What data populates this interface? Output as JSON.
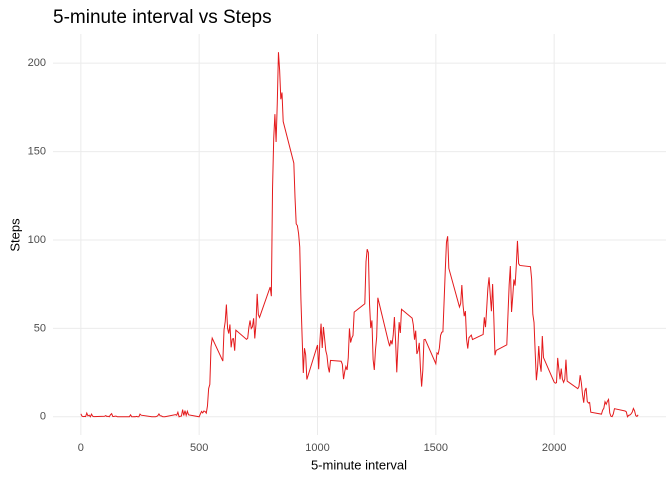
{
  "chart_data": {
    "type": "line",
    "title": "5-minute interval vs Steps",
    "xlabel": "5-minute interval",
    "ylabel": "Steps",
    "color": "#e41a1c",
    "grid": true,
    "xlim": [
      -117.75,
      2472.75
    ],
    "xticks": [
      0,
      500,
      1000,
      1500,
      2000
    ],
    "ylim": [
      -10.3,
      216.5
    ],
    "yticks": [
      0,
      50,
      100,
      150,
      200
    ],
    "x": [
      0,
      5,
      10,
      15,
      20,
      25,
      30,
      35,
      40,
      45,
      50,
      55,
      100,
      105,
      110,
      115,
      120,
      125,
      130,
      135,
      140,
      145,
      150,
      155,
      200,
      205,
      210,
      215,
      220,
      225,
      230,
      235,
      240,
      245,
      250,
      255,
      300,
      305,
      310,
      315,
      320,
      325,
      330,
      335,
      340,
      345,
      350,
      355,
      400,
      405,
      410,
      415,
      420,
      425,
      430,
      435,
      440,
      445,
      450,
      455,
      500,
      505,
      510,
      515,
      520,
      525,
      530,
      535,
      540,
      545,
      550,
      555,
      600,
      605,
      610,
      615,
      620,
      625,
      630,
      635,
      640,
      645,
      650,
      655,
      700,
      705,
      710,
      715,
      720,
      725,
      730,
      735,
      740,
      745,
      750,
      755,
      800,
      805,
      810,
      815,
      820,
      825,
      830,
      835,
      840,
      845,
      850,
      855,
      900,
      905,
      910,
      915,
      920,
      925,
      930,
      935,
      940,
      945,
      950,
      955,
      1000,
      1005,
      1010,
      1015,
      1020,
      1025,
      1030,
      1035,
      1040,
      1045,
      1050,
      1055,
      1100,
      1105,
      1110,
      1115,
      1120,
      1125,
      1130,
      1135,
      1140,
      1145,
      1150,
      1155,
      1200,
      1205,
      1210,
      1215,
      1220,
      1225,
      1230,
      1235,
      1240,
      1245,
      1250,
      1255,
      1300,
      1305,
      1310,
      1315,
      1320,
      1325,
      1330,
      1335,
      1340,
      1345,
      1350,
      1355,
      1400,
      1405,
      1410,
      1415,
      1420,
      1425,
      1430,
      1435,
      1440,
      1445,
      1450,
      1455,
      1500,
      1505,
      1510,
      1515,
      1520,
      1525,
      1530,
      1535,
      1540,
      1545,
      1550,
      1555,
      1600,
      1605,
      1610,
      1615,
      1620,
      1625,
      1630,
      1635,
      1640,
      1645,
      1650,
      1655,
      1700,
      1705,
      1710,
      1715,
      1720,
      1725,
      1730,
      1735,
      1740,
      1745,
      1750,
      1755,
      1800,
      1805,
      1810,
      1815,
      1820,
      1825,
      1830,
      1835,
      1840,
      1845,
      1850,
      1855,
      1900,
      1905,
      1910,
      1915,
      1920,
      1925,
      1930,
      1935,
      1940,
      1945,
      1950,
      1955,
      2000,
      2005,
      2010,
      2015,
      2020,
      2025,
      2030,
      2035,
      2040,
      2045,
      2050,
      2055,
      2100,
      2105,
      2110,
      2115,
      2120,
      2125,
      2130,
      2135,
      2140,
      2145,
      2150,
      2155,
      2200,
      2205,
      2210,
      2215,
      2220,
      2225,
      2230,
      2235,
      2240,
      2245,
      2250,
      2255,
      2300,
      2305,
      2310,
      2315,
      2320,
      2325,
      2330,
      2335,
      2340,
      2345,
      2350,
      2355
    ],
    "values": [
      1.7,
      0.3,
      0.1,
      0.2,
      0.1,
      2.1,
      0.5,
      0.9,
      0,
      1.5,
      0.3,
      0.1,
      0.3,
      0.7,
      0.2,
      0.3,
      0,
      1.1,
      1.8,
      0.2,
      0.2,
      0.4,
      0.3,
      0,
      0,
      0,
      1.1,
      0,
      0,
      0.1,
      0,
      0.2,
      0,
      0,
      1.5,
      0.9,
      0,
      0,
      0,
      0,
      0.2,
      0.6,
      1.6,
      0.6,
      0.5,
      0.1,
      0,
      0,
      1.2,
      0.9,
      2.6,
      0,
      0.3,
      0.4,
      4.1,
      0.7,
      3.5,
      0.8,
      3.1,
      1.1,
      0,
      1.6,
      3,
      2.2,
      3.3,
      3,
      2.1,
      6.1,
      16,
      18.3,
      39.5,
      44.5,
      31.5,
      49.3,
      53.8,
      63.5,
      50,
      47.1,
      52.2,
      39.3,
      44,
      44.2,
      37.4,
      49,
      43.8,
      44.4,
      50.5,
      54.5,
      49.9,
      50.9,
      55.7,
      44.3,
      52.3,
      69.5,
      57.8,
      56.2,
      73.4,
      68.2,
      129.4,
      157.5,
      171.2,
      155.4,
      177.3,
      206.2,
      195.9,
      179.6,
      183.4,
      167,
      143.5,
      124,
      109.1,
      108.1,
      103.7,
      96,
      66.2,
      45.2,
      24.8,
      38.8,
      35,
      21.1,
      40.6,
      26.9,
      42.4,
      52.7,
      38.9,
      50.8,
      44.3,
      37.4,
      34.7,
      28.3,
      25.1,
      31.9,
      31.4,
      29.7,
      21.3,
      25.5,
      28.4,
      26.5,
      33.4,
      49.98,
      42,
      44.6,
      46,
      59.2,
      63.9,
      87.7,
      94.8,
      92.8,
      63.4,
      50.2,
      54.5,
      32.4,
      26.5,
      37.7,
      45.1,
      67.3,
      42.3,
      39.9,
      43.3,
      40.98,
      46.2,
      56.4,
      42.8,
      25.1,
      40,
      53.5,
      47.4,
      60.8,
      55.8,
      51.96,
      43.6,
      48.7,
      35.5,
      37.5,
      41.8,
      27.5,
      17.1,
      26.1,
      43.6,
      43.8,
      30,
      36.1,
      35.5,
      38.8,
      45.96,
      47.8,
      48.1,
      65.3,
      82.9,
      98.7,
      102.1,
      83.96,
      62.1,
      64.1,
      74.5,
      63.2,
      56.9,
      59.8,
      43.9,
      38.6,
      44.7,
      45.5,
      46.2,
      43.7,
      46.6,
      56.3,
      50.7,
      61.2,
      72.7,
      78.9,
      68.9,
      59.7,
      75.1,
      56.5,
      34.8,
      37.5,
      40.7,
      58,
      74.7,
      85.3,
      59.3,
      67.8,
      77.7,
      74.2,
      85.3,
      99.5,
      86.6,
      85.6,
      84.9,
      77.8,
      58,
      53.4,
      36.3,
      20.7,
      27.4,
      40,
      30.2,
      25.5,
      45.7,
      33.5,
      19.6,
      19,
      19.3,
      33.3,
      26.8,
      21.2,
      27.3,
      21.3,
      19.5,
      21.3,
      32.3,
      20.2,
      15.9,
      17.2,
      23.5,
      19.2,
      12.5,
      8,
      14.7,
      16.3,
      8.7,
      7.8,
      8.1,
      2.6,
      1.5,
      3.7,
      4.8,
      8.5,
      7.1,
      8.7,
      9.8,
      2.2,
      0.3,
      0.1,
      1.6,
      4.6,
      3.3,
      2.8,
      0,
      0.8,
      1,
      1.6,
      2.6,
      4.7,
      3.3,
      0.6,
      0.2,
      1.1
    ]
  }
}
